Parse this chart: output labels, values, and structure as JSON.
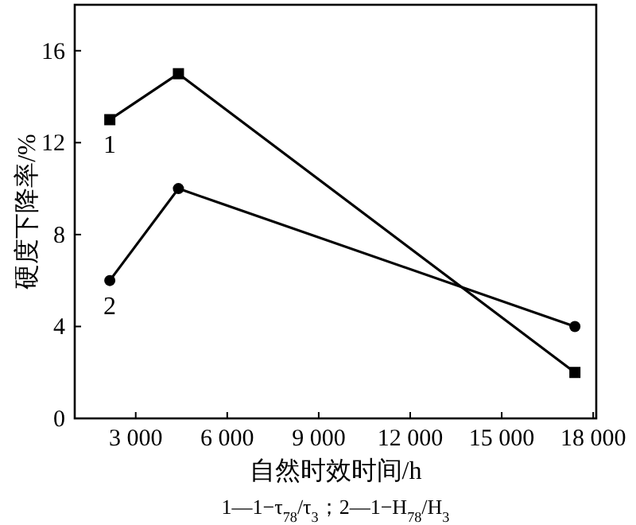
{
  "chart_data": {
    "type": "line",
    "xlabel": "自然时效时间/h",
    "ylabel": "硬度下降率/%",
    "annotations": [
      "1—1−τ$_{78}$/τ$_{3}$；2—1−H$_{78}$/H$_{3}$"
    ],
    "xlim": [
      1000,
      18100
    ],
    "ylim": [
      0,
      18
    ],
    "xticks": [
      {
        "value": 3000,
        "label": "3 000"
      },
      {
        "value": 6000,
        "label": "6 000"
      },
      {
        "value": 9000,
        "label": "9 000"
      },
      {
        "value": 12000,
        "label": "12 000"
      },
      {
        "value": 15000,
        "label": "15 000"
      },
      {
        "value": 18000,
        "label": "18 000"
      }
    ],
    "yticks": [
      0,
      4,
      8,
      12,
      16
    ],
    "grid": false,
    "series": [
      {
        "name": "1",
        "color": "#000000",
        "marker": "square",
        "x": [
          2150,
          4400,
          17400
        ],
        "values": [
          13,
          15,
          2
        ]
      },
      {
        "name": "2",
        "color": "#000000",
        "marker": "circle",
        "x": [
          2150,
          4400,
          17400
        ],
        "values": [
          6,
          10,
          4
        ]
      }
    ]
  }
}
